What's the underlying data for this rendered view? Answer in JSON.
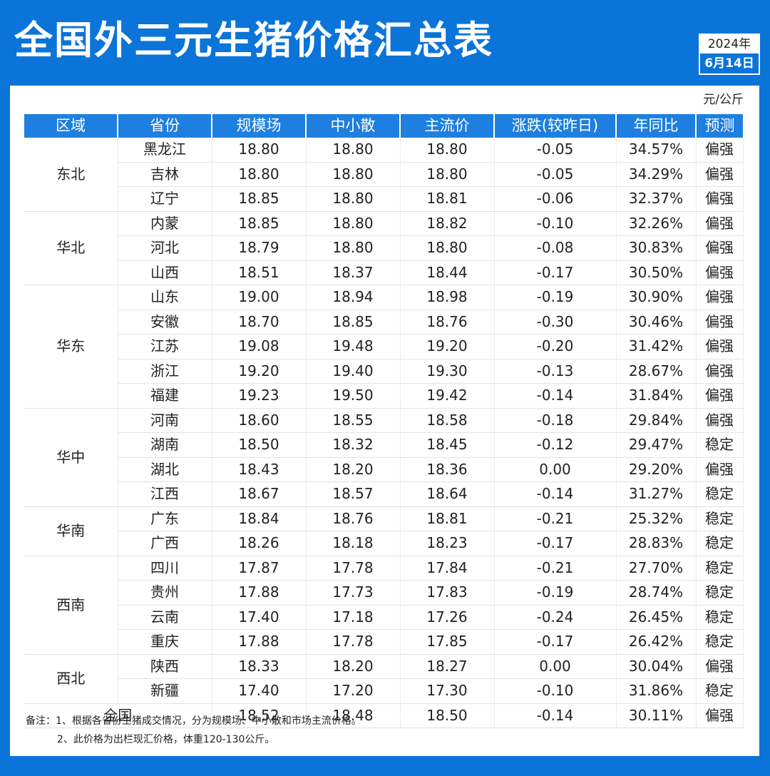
{
  "title": "全国外三元生猪价格汇总表",
  "date": {
    "year": "2024年",
    "day": "6月14日"
  },
  "unit": "元/公斤",
  "columns": [
    "区域",
    "省份",
    "规模场",
    "中小散",
    "主流价",
    "涨跌(较昨日)",
    "年同比",
    "预测"
  ],
  "regions": [
    {
      "name": "东北",
      "provinces": [
        {
          "province": "黑龙江",
          "large": "18.80",
          "small": "18.80",
          "main": "18.80",
          "change": "-0.05",
          "yoy": "34.57%",
          "forecast": "偏强"
        },
        {
          "province": "吉林",
          "large": "18.80",
          "small": "18.80",
          "main": "18.80",
          "change": "-0.05",
          "yoy": "34.29%",
          "forecast": "偏强"
        },
        {
          "province": "辽宁",
          "large": "18.85",
          "small": "18.80",
          "main": "18.81",
          "change": "-0.06",
          "yoy": "32.37%",
          "forecast": "偏强"
        }
      ]
    },
    {
      "name": "华北",
      "provinces": [
        {
          "province": "内蒙",
          "large": "18.85",
          "small": "18.80",
          "main": "18.82",
          "change": "-0.10",
          "yoy": "32.26%",
          "forecast": "偏强"
        },
        {
          "province": "河北",
          "large": "18.79",
          "small": "18.80",
          "main": "18.80",
          "change": "-0.08",
          "yoy": "30.83%",
          "forecast": "偏强"
        },
        {
          "province": "山西",
          "large": "18.51",
          "small": "18.37",
          "main": "18.44",
          "change": "-0.17",
          "yoy": "30.50%",
          "forecast": "偏强"
        }
      ]
    },
    {
      "name": "华东",
      "provinces": [
        {
          "province": "山东",
          "large": "19.00",
          "small": "18.94",
          "main": "18.98",
          "change": "-0.19",
          "yoy": "30.90%",
          "forecast": "偏强"
        },
        {
          "province": "安徽",
          "large": "18.70",
          "small": "18.85",
          "main": "18.76",
          "change": "-0.30",
          "yoy": "30.46%",
          "forecast": "偏强"
        },
        {
          "province": "江苏",
          "large": "19.08",
          "small": "19.48",
          "main": "19.20",
          "change": "-0.20",
          "yoy": "31.42%",
          "forecast": "偏强"
        },
        {
          "province": "浙江",
          "large": "19.20",
          "small": "19.40",
          "main": "19.30",
          "change": "-0.13",
          "yoy": "28.67%",
          "forecast": "偏强"
        },
        {
          "province": "福建",
          "large": "19.23",
          "small": "19.50",
          "main": "19.42",
          "change": "-0.14",
          "yoy": "31.84%",
          "forecast": "偏强"
        }
      ]
    },
    {
      "name": "华中",
      "provinces": [
        {
          "province": "河南",
          "large": "18.60",
          "small": "18.55",
          "main": "18.58",
          "change": "-0.18",
          "yoy": "29.84%",
          "forecast": "偏强"
        },
        {
          "province": "湖南",
          "large": "18.50",
          "small": "18.32",
          "main": "18.45",
          "change": "-0.12",
          "yoy": "29.47%",
          "forecast": "稳定"
        },
        {
          "province": "湖北",
          "large": "18.43",
          "small": "18.20",
          "main": "18.36",
          "change": "0.00",
          "yoy": "29.20%",
          "forecast": "偏强"
        },
        {
          "province": "江西",
          "large": "18.67",
          "small": "18.57",
          "main": "18.64",
          "change": "-0.14",
          "yoy": "31.27%",
          "forecast": "稳定"
        }
      ]
    },
    {
      "name": "华南",
      "provinces": [
        {
          "province": "广东",
          "large": "18.84",
          "small": "18.76",
          "main": "18.81",
          "change": "-0.21",
          "yoy": "25.32%",
          "forecast": "稳定"
        },
        {
          "province": "广西",
          "large": "18.26",
          "small": "18.18",
          "main": "18.23",
          "change": "-0.17",
          "yoy": "28.83%",
          "forecast": "稳定"
        }
      ]
    },
    {
      "name": "西南",
      "provinces": [
        {
          "province": "四川",
          "large": "17.87",
          "small": "17.78",
          "main": "17.84",
          "change": "-0.21",
          "yoy": "27.70%",
          "forecast": "稳定"
        },
        {
          "province": "贵州",
          "large": "17.88",
          "small": "17.73",
          "main": "17.83",
          "change": "-0.19",
          "yoy": "28.74%",
          "forecast": "稳定"
        },
        {
          "province": "云南",
          "large": "17.40",
          "small": "17.18",
          "main": "17.26",
          "change": "-0.24",
          "yoy": "26.45%",
          "forecast": "稳定"
        },
        {
          "province": "重庆",
          "large": "17.88",
          "small": "17.78",
          "main": "17.85",
          "change": "-0.17",
          "yoy": "26.42%",
          "forecast": "稳定"
        }
      ]
    },
    {
      "name": "西北",
      "provinces": [
        {
          "province": "陕西",
          "large": "18.33",
          "small": "18.20",
          "main": "18.27",
          "change": "0.00",
          "yoy": "30.04%",
          "forecast": "偏强"
        },
        {
          "province": "新疆",
          "large": "17.40",
          "small": "17.20",
          "main": "17.30",
          "change": "-0.10",
          "yoy": "31.86%",
          "forecast": "稳定"
        }
      ]
    }
  ],
  "national": {
    "label": "全国",
    "large": "18.52",
    "small": "18.48",
    "main": "18.50",
    "change": "-0.14",
    "yoy": "30.11%",
    "forecast": "偏强"
  },
  "notes": [
    "备注：1、根据各省份生猪成交情况，分为规模场、中小散和市场主流价格。",
    "2、此价格为出栏现汇价格，体重120-130公斤。"
  ],
  "colors": {
    "background": "#0b74d8",
    "header": "#1e7fe0",
    "decline": "#1fb8b0",
    "yoy": "#ea4b5b",
    "forecast_strong": "#ea4b5b"
  }
}
